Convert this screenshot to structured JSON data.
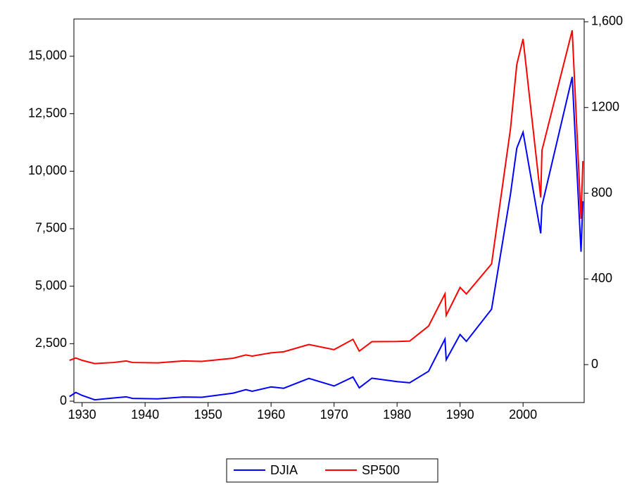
{
  "chart_data": {
    "type": "line",
    "x": [
      1928,
      1929,
      1930,
      1932,
      1935,
      1937,
      1938,
      1942,
      1946,
      1949,
      1954,
      1956,
      1957,
      1960,
      1962,
      1966,
      1970,
      1973,
      1974,
      1976,
      1980,
      1982,
      1985,
      1987.6,
      1987.8,
      1990,
      1991,
      1995,
      1998,
      1999,
      2000,
      2002.8,
      2003,
      2007.8,
      2009.2,
      2009.5
    ],
    "series": [
      {
        "name": "DJIA",
        "color": "#0000ff",
        "axis": "y",
        "values": [
          200,
          380,
          250,
          60,
          140,
          190,
          120,
          100,
          180,
          170,
          350,
          500,
          430,
          620,
          560,
          990,
          660,
          1050,
          580,
          1000,
          850,
          800,
          1300,
          2700,
          1800,
          2900,
          2600,
          4000,
          9000,
          11000,
          11700,
          7300,
          8500,
          14100,
          6500,
          8700
        ]
      },
      {
        "name": "SP500",
        "color": "#ff0000",
        "axis": "y2",
        "values": [
          20,
          31,
          20,
          5,
          10,
          17,
          10,
          8,
          17,
          15,
          30,
          45,
          40,
          55,
          60,
          94,
          70,
          118,
          63,
          107,
          108,
          110,
          180,
          330,
          230,
          360,
          330,
          470,
          1100,
          1400,
          1520,
          780,
          1000,
          1560,
          680,
          950
        ]
      }
    ],
    "xlim": [
      1928.7,
      2009.7
    ],
    "xticks": [
      1930,
      1940,
      1950,
      1960,
      1970,
      1980,
      1990,
      2000
    ],
    "ylim": [
      -60,
      16620
    ],
    "yticks": [
      0,
      {
        "value": 2500,
        "label": "2,500"
      },
      {
        "value": 5000,
        "label": "5,000"
      },
      {
        "value": 7500,
        "label": "7,500"
      },
      {
        "value": 10000,
        "label": "10,000"
      },
      {
        "value": 12500,
        "label": "12,500"
      },
      {
        "value": 15000,
        "label": "15,000"
      }
    ],
    "y2lim": [
      -177,
      1613
    ],
    "y2ticks": [
      0,
      400,
      800,
      1200,
      {
        "value": 1600,
        "label": "1,600"
      }
    ],
    "legend": "bottom"
  }
}
